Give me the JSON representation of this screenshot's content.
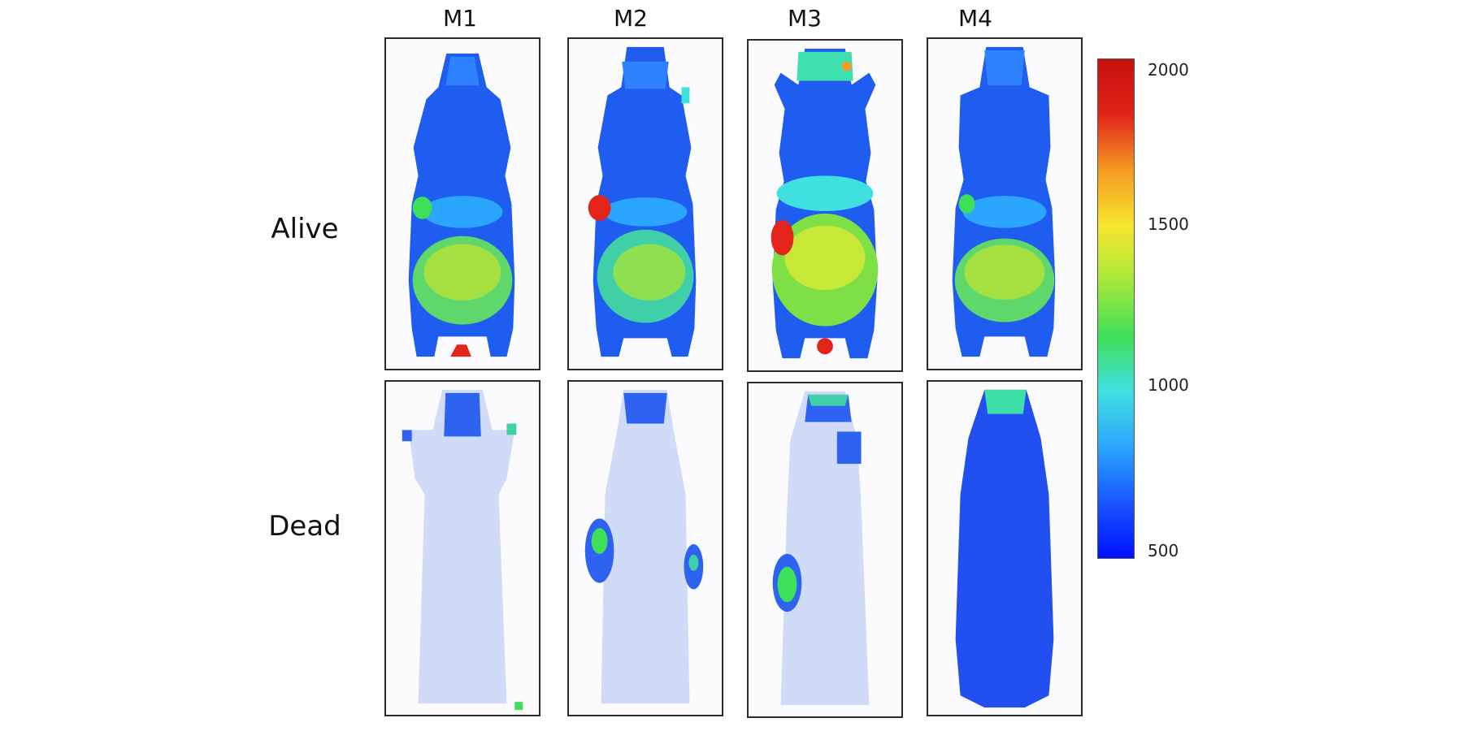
{
  "columns": [
    "M1",
    "M2",
    "M3",
    "M4"
  ],
  "rows": [
    "Alive",
    "Dead"
  ],
  "colorbar": {
    "max_label": "2000",
    "tick_1500": "1500",
    "tick_1000": "1000",
    "min_label": "500",
    "colors": [
      "#0010ff",
      "#1a55ff",
      "#2aa6ff",
      "#3fe0e0",
      "#3ee05a",
      "#a6e83a",
      "#f7e62c",
      "#f59a22",
      "#e2241a",
      "#c8100c"
    ]
  }
}
